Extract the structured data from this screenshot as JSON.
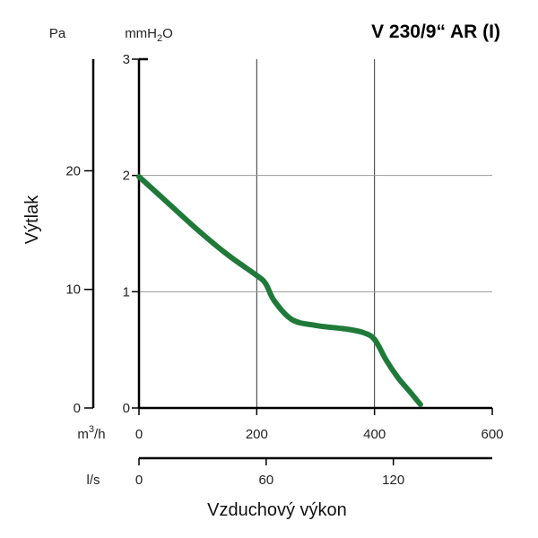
{
  "chart_data": {
    "type": "line",
    "title": "V 230/9“ AR (I)",
    "xlabel": "Vzduchový výkon",
    "ylabel": "Výtlak",
    "x_unit_label": "m³/h",
    "x_unit_base": "m",
    "x_unit_sup": "3",
    "x_unit_tail": "/h",
    "x2_unit_label": "l/s",
    "y_unit_label": "Pa",
    "y2_unit_label": "mmH₂O",
    "y2_unit_base": "mmH",
    "y2_unit_sub": "2",
    "y2_unit_tail": "O",
    "xlim": [
      0,
      600
    ],
    "ylim": [
      0,
      3
    ],
    "x_ticks": [
      "0",
      "200",
      "400",
      "600"
    ],
    "x2_ticks": [
      "0",
      "60",
      "120"
    ],
    "x2_tick_values_m3h": [
      0,
      216,
      432
    ],
    "y_ticks": [
      "0",
      "1",
      "2",
      "3"
    ],
    "y2_ticks": [
      "0",
      "10",
      "20"
    ],
    "y2_tick_values_mmH2O": [
      0,
      1.02,
      2.04
    ],
    "grid": true,
    "line_color": "#1f7a3a",
    "series": [
      {
        "x": [
          0,
          50,
          100,
          150,
          200,
          215,
          230,
          260,
          300,
          350,
          380,
          400,
          420,
          440,
          460,
          478
        ],
        "y": [
          1.99,
          1.76,
          1.53,
          1.32,
          1.14,
          1.07,
          0.92,
          0.76,
          0.71,
          0.68,
          0.65,
          0.59,
          0.41,
          0.26,
          0.14,
          0.03
        ]
      }
    ]
  }
}
